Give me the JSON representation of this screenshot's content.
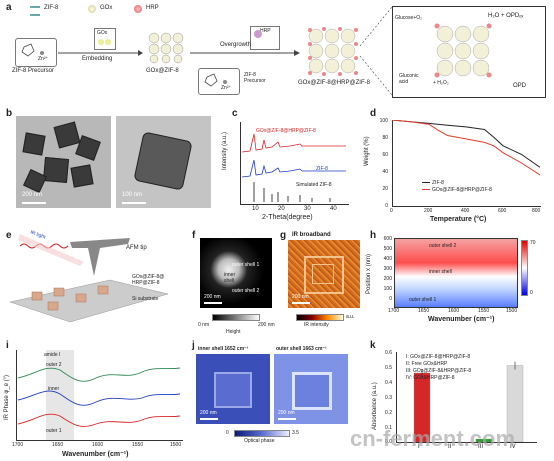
{
  "panels": {
    "a": {
      "label": "a",
      "legend": [
        "ZIF-8",
        "GOx",
        "HRP"
      ],
      "zif8_precursor_metal": "Zn²⁺",
      "zif8_precursor": "ZIF-8 Precursor",
      "gox_label": "GOx",
      "embedding": "Embedding",
      "gox_zif8": "GOx@ZIF-8",
      "hrp_label": "HRP",
      "overgrowth": "Overgrowth",
      "zif8_precursor_2": "ZIF-8\nPrecursor",
      "zn2": "Zn²⁺",
      "gox_zif8_hrp": "GOx@ZIF-8@HRP@ZIF-8",
      "glucose": "Glucose+O₂",
      "h2o_opd": "H₂O + OPDₒₓ",
      "gluconic": "Gluconic\nacid",
      "h2o2": "+ H₂O₂",
      "opd": "OPD"
    },
    "b": {
      "label": "b",
      "scale1": "200 nm",
      "scale2": "100 nm"
    },
    "c": {
      "label": "c",
      "ylabel": "Intensity (a.u.)",
      "xlabel": "2-Theta(degree)",
      "series": [
        "GOx@ZIF-8@HRP@ZIF-8",
        "ZIF-8",
        "Simulated ZIF-8"
      ],
      "xticks": [
        "10",
        "20",
        "30",
        "40"
      ]
    },
    "d": {
      "label": "d",
      "ylabel": "Weight (%)",
      "xlabel": "Temperature (°C)",
      "yticks": [
        "100",
        "80",
        "60",
        "40",
        "20",
        "0"
      ],
      "xticks": [
        "0",
        "200",
        "400",
        "600",
        "800"
      ],
      "legend": [
        "ZIF-8",
        "GOx@ZIF-8@HRP@ZIF-8"
      ]
    },
    "e": {
      "label": "e",
      "afm_tip": "AFM tip",
      "ir_light": "IR light",
      "particles": "GOx@ZIF-8@\nHRP@ZIF-8",
      "substrate": "Si substrate"
    },
    "f": {
      "label": "f",
      "outer1": "outer shell 1",
      "inner": "inner\nshell",
      "outer2": "outer shell 2",
      "scale": "200 nm",
      "cb_min": "0 nm",
      "cb_max": "200 nm",
      "cb_title": "Height"
    },
    "g": {
      "label": "g",
      "title": "IR broadband",
      "scale": "200 nm",
      "cb_max": "a.u.",
      "cb_title": "IR intensity"
    },
    "h": {
      "label": "h",
      "ylabel": "Position x (nm)",
      "xlabel": "Wavenumber (cm⁻¹)",
      "outer2": "outer shell 2",
      "inner": "inner shell",
      "outer1": "outer shell 1",
      "cb_max": "70",
      "cb_min": "0",
      "yticks": [
        "600",
        "500",
        "400",
        "300",
        "200",
        "100",
        "0"
      ],
      "xticks": [
        "1700",
        "1650",
        "1600",
        "1550",
        "1500"
      ]
    },
    "i": {
      "label": "i",
      "ylabel": "IR Phase φ_e (°)",
      "xlabel": "Wavenumber (cm⁻¹)",
      "amide": "amide I",
      "outer2": "outer 2",
      "inner": "inner",
      "outer1": "outer 1",
      "xticks": [
        "1700",
        "1650",
        "1600",
        "1550",
        "1500"
      ]
    },
    "j": {
      "label": "j",
      "title1": "inner shell 1652 cm⁻¹",
      "title2": "outer shell 1663 cm⁻¹",
      "scale": "200 nm",
      "cb_min": "0",
      "cb_max": "3.5",
      "cb_title": "Optical phase"
    },
    "k": {
      "label": "k",
      "ylabel": "Absorbance (a.u.)",
      "legend": [
        "I: GOx@ZIF-8@HRP@ZIF-8",
        "II: Free GOx&HRP",
        "III: GOx@ZIF-8&HRP@ZIF-8",
        "IV: GOx&HRP@ZIF-8"
      ],
      "yticks": [
        "0.6",
        "0.5",
        "0.4",
        "0.3",
        "0.2",
        "0.1",
        "0.0"
      ],
      "categories": [
        "I",
        "II",
        "III",
        "IV"
      ]
    },
    "watermark": "cn-ferment.com"
  },
  "chart_data": [
    {
      "type": "bar",
      "categories": [
        "I",
        "II",
        "III",
        "IV"
      ],
      "values": [
        0.46,
        0.0,
        0.02,
        0.51
      ],
      "ylabel": "Absorbance (a.u.)",
      "ylim": [
        0,
        0.6
      ],
      "colors": [
        "#d62728",
        "#d9d9d9",
        "#2ca02c",
        "#d9d9d9"
      ]
    },
    {
      "type": "line",
      "xlabel": "Temperature (°C)",
      "ylabel": "Weight (%)",
      "xlim": [
        0,
        800
      ],
      "ylim": [
        0,
        100
      ],
      "series": [
        {
          "name": "ZIF-8",
          "x": [
            0,
            100,
            200,
            300,
            400,
            500,
            550,
            600,
            700,
            800
          ],
          "y": [
            100,
            98,
            96,
            94,
            92,
            89,
            80,
            70,
            60,
            45
          ]
        },
        {
          "name": "GOx@ZIF-8@HRP@ZIF-8",
          "x": [
            0,
            100,
            200,
            250,
            300,
            400,
            500,
            550,
            600,
            700,
            800
          ],
          "y": [
            100,
            98,
            95,
            88,
            82,
            78,
            74,
            70,
            62,
            50,
            36
          ]
        }
      ]
    }
  ]
}
